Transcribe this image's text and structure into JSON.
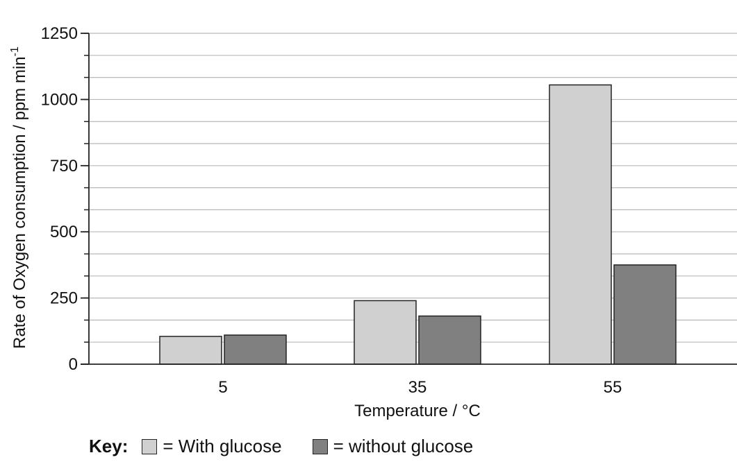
{
  "chart_data": {
    "type": "bar",
    "categories": [
      "5",
      "35",
      "55"
    ],
    "series": [
      {
        "name": "With glucose",
        "values": [
          105,
          240,
          1055
        ]
      },
      {
        "name": "without glucose",
        "values": [
          110,
          182,
          375
        ]
      }
    ],
    "xlabel": "Temperature / °C",
    "ylabel": "Rate of Oxygen consumption / ppm min",
    "ylabel_superscript": "-1",
    "ylim": [
      0,
      1250
    ],
    "yticks": [
      0,
      250,
      500,
      750,
      1000,
      1250
    ],
    "minor_tick_step": 83.33,
    "grid": true,
    "legend_position": "bottom"
  },
  "key": {
    "title": "Key:",
    "items": [
      {
        "label": "= With glucose",
        "color": "#d0d0d0"
      },
      {
        "label": "= without glucose",
        "color": "#808080"
      }
    ]
  },
  "colors": {
    "with_glucose": "#d0d0d0",
    "without_glucose": "#808080",
    "grid": "#b8b8b8",
    "axis": "#222222"
  }
}
